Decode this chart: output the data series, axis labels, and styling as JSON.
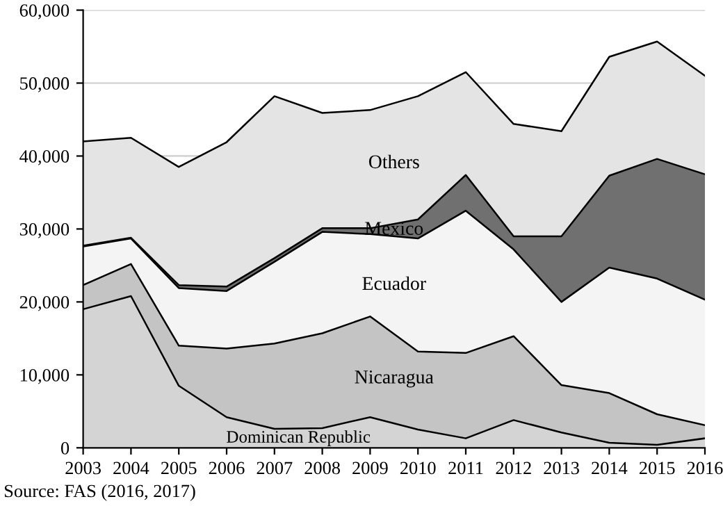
{
  "chart_data": {
    "type": "area",
    "stacked": true,
    "x": [
      2003,
      2004,
      2005,
      2006,
      2007,
      2008,
      2009,
      2010,
      2011,
      2012,
      2013,
      2014,
      2015,
      2016
    ],
    "series": [
      {
        "name": "Dominican Republic",
        "color": "#d4d4d4",
        "values": [
          19000,
          20800,
          8500,
          4200,
          2600,
          2700,
          4200,
          2500,
          1300,
          3800,
          2100,
          700,
          400,
          1300
        ]
      },
      {
        "name": "Nicaragua",
        "color": "#c4c4c4",
        "values": [
          3300,
          4400,
          5500,
          9400,
          11700,
          13000,
          13800,
          10700,
          11700,
          11500,
          6500,
          6800,
          4200,
          1800
        ]
      },
      {
        "name": "Ecuador",
        "color": "#f4f4f4",
        "values": [
          5300,
          3500,
          7900,
          7900,
          11200,
          13900,
          11300,
          15500,
          19500,
          11900,
          11400,
          17200,
          18600,
          17200
        ]
      },
      {
        "name": "Mexico",
        "color": "#707070",
        "values": [
          100,
          100,
          400,
          600,
          500,
          500,
          800,
          2600,
          4900,
          1800,
          9000,
          12600,
          16400,
          17200
        ]
      },
      {
        "name": "Others",
        "color": "#e4e4e4",
        "values": [
          14300,
          13700,
          16200,
          19800,
          22200,
          15800,
          16200,
          16900,
          14100,
          15400,
          14400,
          16300,
          16100,
          13500
        ]
      }
    ],
    "xlim": [
      2003,
      2016
    ],
    "xticks": [
      2003,
      2004,
      2005,
      2006,
      2007,
      2008,
      2009,
      2010,
      2011,
      2012,
      2013,
      2014,
      2015,
      2016
    ],
    "ylim": [
      0,
      60000
    ],
    "yticks": [
      0,
      {
        "value": 10000,
        "label": "10,000"
      },
      {
        "value": 20000,
        "label": "20,000"
      },
      {
        "value": 30000,
        "label": "30,000"
      },
      {
        "value": 40000,
        "label": "40,000"
      },
      {
        "value": 50000,
        "label": "50,000"
      },
      {
        "value": 60000,
        "label": "60,000"
      }
    ],
    "grid": "y",
    "legend": false,
    "annotations": [
      "Source: FAS (2016, 2017)"
    ]
  }
}
